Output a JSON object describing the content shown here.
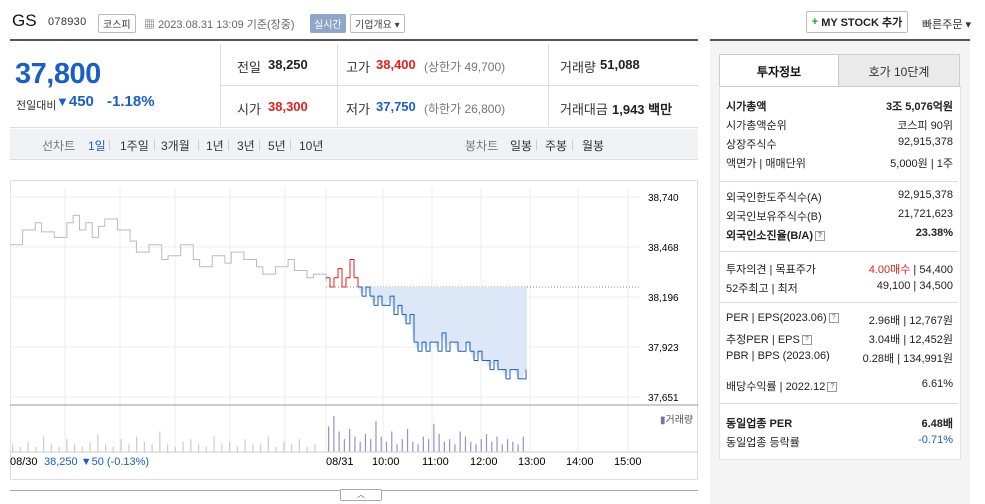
{
  "header": {
    "name": "GS",
    "code": "078930",
    "market": "코스피",
    "datetime": "2023.08.31 13:09",
    "basis": "기준(장중)",
    "realtime": "실시간",
    "overview": "기업개요",
    "my_stock": "MY STOCK 추가",
    "quick_order": "빠른주문"
  },
  "price": {
    "current": "37,800",
    "change_label": "전일대비",
    "change": "450",
    "change_pct": "-1.18%"
  },
  "quote": {
    "prev_label": "전일",
    "prev": "38,250",
    "high_label": "고가",
    "high": "38,400",
    "upper_limit": "(상한가 49,700)",
    "volume_label": "거래량",
    "volume": "51,088",
    "open_label": "시가",
    "open": "38,300",
    "low_label": "저가",
    "low": "37,750",
    "lower_limit": "(하한가 26,800)",
    "amount_label": "거래대금",
    "amount": "1,943",
    "amount_unit": "백만"
  },
  "period_bar": {
    "line_label": "선차트",
    "periods": [
      "1일",
      "1주일",
      "3개월",
      "1년",
      "3년",
      "5년",
      "10년"
    ],
    "candle_label": "봉차트",
    "candles": [
      "일봉",
      "주봉",
      "월봉"
    ]
  },
  "chart_data": {
    "type": "line",
    "y_ticks": [
      "38,740",
      "38,468",
      "38,196",
      "37,923",
      "37,651"
    ],
    "ylim": [
      37651,
      38740
    ],
    "x_ticks": [
      "08/30",
      "08/31",
      "10:00",
      "11:00",
      "12:00",
      "13:00",
      "14:00",
      "15:00"
    ],
    "prev_close": 38250,
    "prev_day_summary": "38,250 ▼50 (-0.13%)",
    "volume_label": "거래량",
    "series": [
      {
        "x": [
          0,
          4,
          8,
          10,
          14,
          18,
          20,
          22,
          24,
          26,
          28,
          30,
          34,
          38,
          40,
          44,
          48,
          50,
          54,
          58,
          60,
          64,
          68,
          70,
          74,
          78,
          80,
          84,
          88,
          90,
          94,
          96,
          100
        ],
        "y": [
          38480,
          38560,
          38600,
          38550,
          38520,
          38600,
          38640,
          38560,
          38600,
          38520,
          38580,
          38620,
          38560,
          38500,
          38440,
          38480,
          38400,
          38420,
          38480,
          38400,
          38360,
          38420,
          38380,
          38440,
          38400,
          38360,
          38320,
          38360,
          38400,
          38340,
          38300,
          38320,
          38280
        ]
      },
      {
        "x": [
          0,
          2,
          4,
          6,
          8,
          10,
          12,
          14,
          16,
          18,
          20,
          22,
          24,
          26,
          28,
          30,
          32,
          34,
          36,
          38,
          40,
          42,
          44,
          46,
          48,
          50,
          52,
          54,
          56,
          58,
          60,
          62,
          64,
          66,
          68,
          70,
          72,
          74,
          76,
          78,
          80,
          82,
          84,
          86,
          88,
          90,
          92,
          94,
          96,
          98,
          100
        ],
        "y": [
          38300,
          38250,
          38300,
          38350,
          38250,
          38300,
          38400,
          38300,
          38250,
          38200,
          38250,
          38200,
          38150,
          38200,
          38150,
          38150,
          38200,
          38100,
          38150,
          38100,
          38050,
          38100,
          37950,
          37900,
          37950,
          37900,
          37950,
          37950,
          37900,
          38000,
          37900,
          37950,
          37950,
          37900,
          37900,
          37950,
          37900,
          37850,
          37900,
          37850,
          37850,
          37800,
          37850,
          37800,
          37800,
          37750,
          37800,
          37800,
          37750,
          37750,
          37800
        ]
      }
    ],
    "volumes": [
      3,
      2,
      4,
      2,
      6,
      3,
      2,
      5,
      3,
      2,
      4,
      7,
      3,
      2,
      5,
      3,
      6,
      4,
      3,
      8,
      3,
      2,
      4,
      5,
      3,
      2,
      6,
      3,
      4,
      2,
      5,
      3,
      3,
      6,
      2,
      4,
      3,
      5,
      2,
      3,
      10,
      14,
      8,
      5,
      9,
      6,
      4,
      7,
      5,
      12,
      6,
      4,
      8,
      3,
      5,
      9,
      4,
      3,
      6,
      5,
      11,
      7,
      4,
      5,
      3,
      8,
      6,
      4,
      3,
      5,
      7,
      4,
      6,
      3,
      5,
      4,
      3,
      6
    ]
  },
  "right_panel": {
    "tabs": [
      "투자정보",
      "호가 10단계"
    ],
    "rows1": [
      {
        "label": "시가총액",
        "value": "3조 5,076억원",
        "bold": true
      },
      {
        "label": "시가총액순위",
        "value": "코스피 90위"
      },
      {
        "label": "상장주식수",
        "value": "92,915,378"
      },
      {
        "label": "액면가 | 매매단위",
        "value": "5,000원 | 1주"
      }
    ],
    "rows2": [
      {
        "label": "외국인한도주식수(A)",
        "value": "92,915,378"
      },
      {
        "label": "외국인보유주식수(B)",
        "value": "21,721,623"
      },
      {
        "label": "외국인소진율(B/A)",
        "value": "23.38%",
        "bold": true
      }
    ],
    "opinion_label": "투자의견 | 목표주가",
    "opinion": "4.00매수",
    "target": "54,400",
    "week52_label": "52주최고 | 최저",
    "week52": "49,100 | 34,500",
    "per_label": "PER | EPS(2023.06)",
    "per_value": "2.96배 | 12,767원",
    "est_per_label": "추정PER | EPS",
    "est_per_value": "3.04배 | 12,452원",
    "pbr_label": "PBR | BPS (2023.06)",
    "pbr_value": "0.28배 | 134,991원",
    "div_label": "배당수익률 | 2022.12",
    "div_value": "6.61%",
    "sector_per_label": "동일업종 PER",
    "sector_per": "6.48배",
    "sector_rate_label": "동일업종 등락률",
    "sector_rate": "-0.71%"
  }
}
